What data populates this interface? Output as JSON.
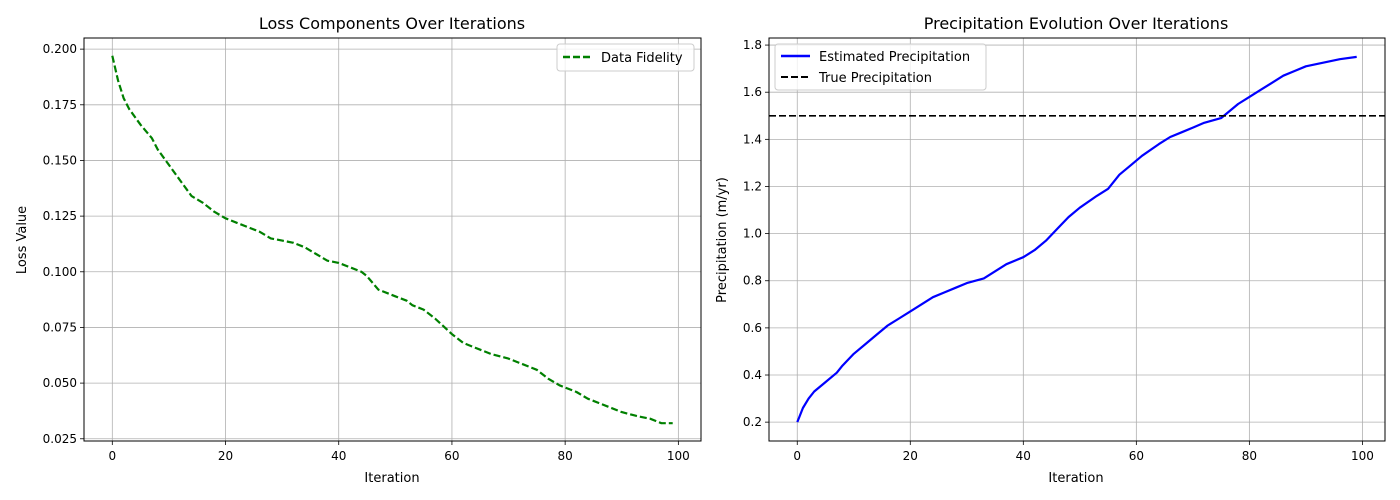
{
  "chart_data": [
    {
      "type": "line",
      "title": "Loss Components Over Iterations",
      "xlabel": "Iteration",
      "ylabel": "Loss Value",
      "xlim": [
        -5,
        104
      ],
      "ylim": [
        0.024,
        0.205
      ],
      "xticks": [
        0,
        20,
        40,
        60,
        80,
        100
      ],
      "yticks": [
        0.025,
        0.05,
        0.075,
        0.1,
        0.125,
        0.15,
        0.175,
        0.2
      ],
      "ytick_labels": [
        "0.025",
        "0.050",
        "0.075",
        "0.100",
        "0.125",
        "0.150",
        "0.175",
        "0.200"
      ],
      "grid": true,
      "legend_position": "top-right",
      "series": [
        {
          "name": "Data Fidelity",
          "color": "#008000",
          "style": "dashed",
          "x": [
            0,
            1,
            2,
            3,
            5,
            7,
            8,
            10,
            12,
            14,
            16,
            18,
            20,
            22,
            24,
            26,
            28,
            30,
            32,
            34,
            36,
            38,
            40,
            42,
            44,
            45,
            47,
            50,
            52,
            53,
            55,
            57,
            60,
            62,
            65,
            67,
            70,
            72,
            75,
            77,
            79,
            82,
            84,
            86,
            88,
            90,
            93,
            95,
            97,
            99
          ],
          "y": [
            0.197,
            0.186,
            0.178,
            0.173,
            0.166,
            0.16,
            0.155,
            0.148,
            0.141,
            0.134,
            0.131,
            0.127,
            0.124,
            0.122,
            0.12,
            0.118,
            0.115,
            0.114,
            0.113,
            0.111,
            0.108,
            0.105,
            0.104,
            0.102,
            0.1,
            0.098,
            0.092,
            0.089,
            0.087,
            0.085,
            0.083,
            0.079,
            0.072,
            0.068,
            0.065,
            0.063,
            0.061,
            0.059,
            0.056,
            0.052,
            0.049,
            0.046,
            0.043,
            0.041,
            0.039,
            0.037,
            0.035,
            0.034,
            0.032,
            0.032
          ]
        }
      ]
    },
    {
      "type": "line",
      "title": "Precipitation Evolution Over Iterations",
      "xlabel": "Iteration",
      "ylabel": "Precipitation (m/yr)",
      "xlim": [
        -5,
        104
      ],
      "ylim": [
        0.12,
        1.83
      ],
      "xticks": [
        0,
        20,
        40,
        60,
        80,
        100
      ],
      "yticks": [
        0.2,
        0.4,
        0.6,
        0.8,
        1.0,
        1.2,
        1.4,
        1.6,
        1.8
      ],
      "ytick_labels": [
        "0.2",
        "0.4",
        "0.6",
        "0.8",
        "1.0",
        "1.2",
        "1.4",
        "1.6",
        "1.8"
      ],
      "grid": true,
      "legend_position": "top-left",
      "series": [
        {
          "name": "Estimated Precipitation",
          "color": "#0000ff",
          "style": "solid",
          "x": [
            0,
            1,
            2,
            3,
            5,
            7,
            8,
            10,
            12,
            14,
            16,
            18,
            20,
            22,
            24,
            26,
            28,
            30,
            33,
            35,
            37,
            40,
            42,
            44,
            46,
            48,
            50,
            53,
            55,
            57,
            59,
            61,
            64,
            66,
            68,
            70,
            72,
            75,
            76,
            78,
            80,
            82,
            84,
            86,
            88,
            90,
            92,
            94,
            96,
            99
          ],
          "y": [
            0.2,
            0.26,
            0.3,
            0.33,
            0.37,
            0.41,
            0.44,
            0.49,
            0.53,
            0.57,
            0.61,
            0.64,
            0.67,
            0.7,
            0.73,
            0.75,
            0.77,
            0.79,
            0.81,
            0.84,
            0.87,
            0.9,
            0.93,
            0.97,
            1.02,
            1.07,
            1.11,
            1.16,
            1.19,
            1.25,
            1.29,
            1.33,
            1.38,
            1.41,
            1.43,
            1.45,
            1.47,
            1.49,
            1.51,
            1.55,
            1.58,
            1.61,
            1.64,
            1.67,
            1.69,
            1.71,
            1.72,
            1.73,
            1.74,
            1.75
          ]
        },
        {
          "name": "True Precipitation",
          "color": "#000000",
          "style": "dashed",
          "y_constant": 1.5
        }
      ]
    }
  ]
}
